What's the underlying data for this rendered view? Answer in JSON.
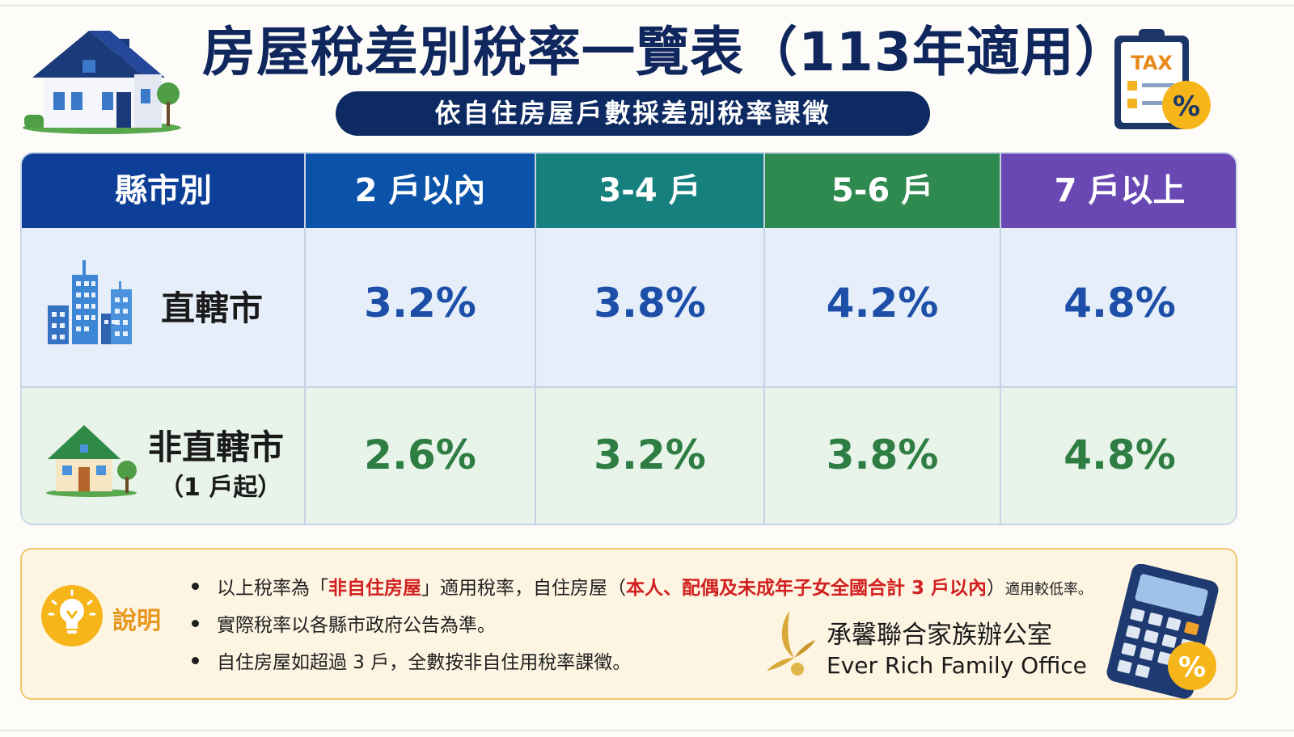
{
  "header": {
    "title": "房屋稅差別稅率一覽表（113年適用）",
    "subtitle": "依自住房屋戶數採差別稅率課徵",
    "tax_icon_text": "TAX",
    "percent_symbol": "%"
  },
  "table": {
    "columns": [
      "縣市別",
      "2 戶以內",
      "3-4 戶",
      "5-6 戶",
      "7 戶以上"
    ],
    "column_colors": [
      "#0d3f98",
      "#0b53a8",
      "#16807e",
      "#2e8a4e",
      "#6a48b3"
    ],
    "rows": [
      {
        "label": "直轄市",
        "sublabel": "",
        "icon": "city-buildings-icon",
        "values": [
          "3.2%",
          "3.8%",
          "4.2%",
          "4.8%"
        ]
      },
      {
        "label": "非直轄市",
        "sublabel": "（1 戶起）",
        "icon": "house-icon",
        "values": [
          "2.6%",
          "3.2%",
          "3.8%",
          "4.8%"
        ]
      }
    ]
  },
  "notes": {
    "title": "說明",
    "items": [
      {
        "segments": [
          {
            "text": "以上稅率為「",
            "style": "normal"
          },
          {
            "text": "非自住房屋",
            "style": "red"
          },
          {
            "text": "」適用稅率，自住房屋（",
            "style": "normal"
          },
          {
            "text": "本人、配偶及未成年子女全國合計 3 戶以內",
            "style": "red"
          },
          {
            "text": "）",
            "style": "normal"
          },
          {
            "text": "適用較低率。",
            "style": "small"
          }
        ]
      },
      {
        "segments": [
          {
            "text": "實際稅率以各縣市政府公告為準。",
            "style": "normal"
          }
        ]
      },
      {
        "segments": [
          {
            "text": "自住房屋如超過 3 戶，全數按非自住用稅率課徵。",
            "style": "normal"
          }
        ]
      }
    ]
  },
  "branding": {
    "name_cn": "承馨聯合家族辦公室",
    "name_en": "Ever Rich Family Office"
  },
  "colors": {
    "navy": "#0e2a62",
    "rate_blue": "#1d4fa8",
    "rate_green": "#2e7d43",
    "accent_orange": "#e8961c",
    "highlight_red": "#d21f1f"
  }
}
